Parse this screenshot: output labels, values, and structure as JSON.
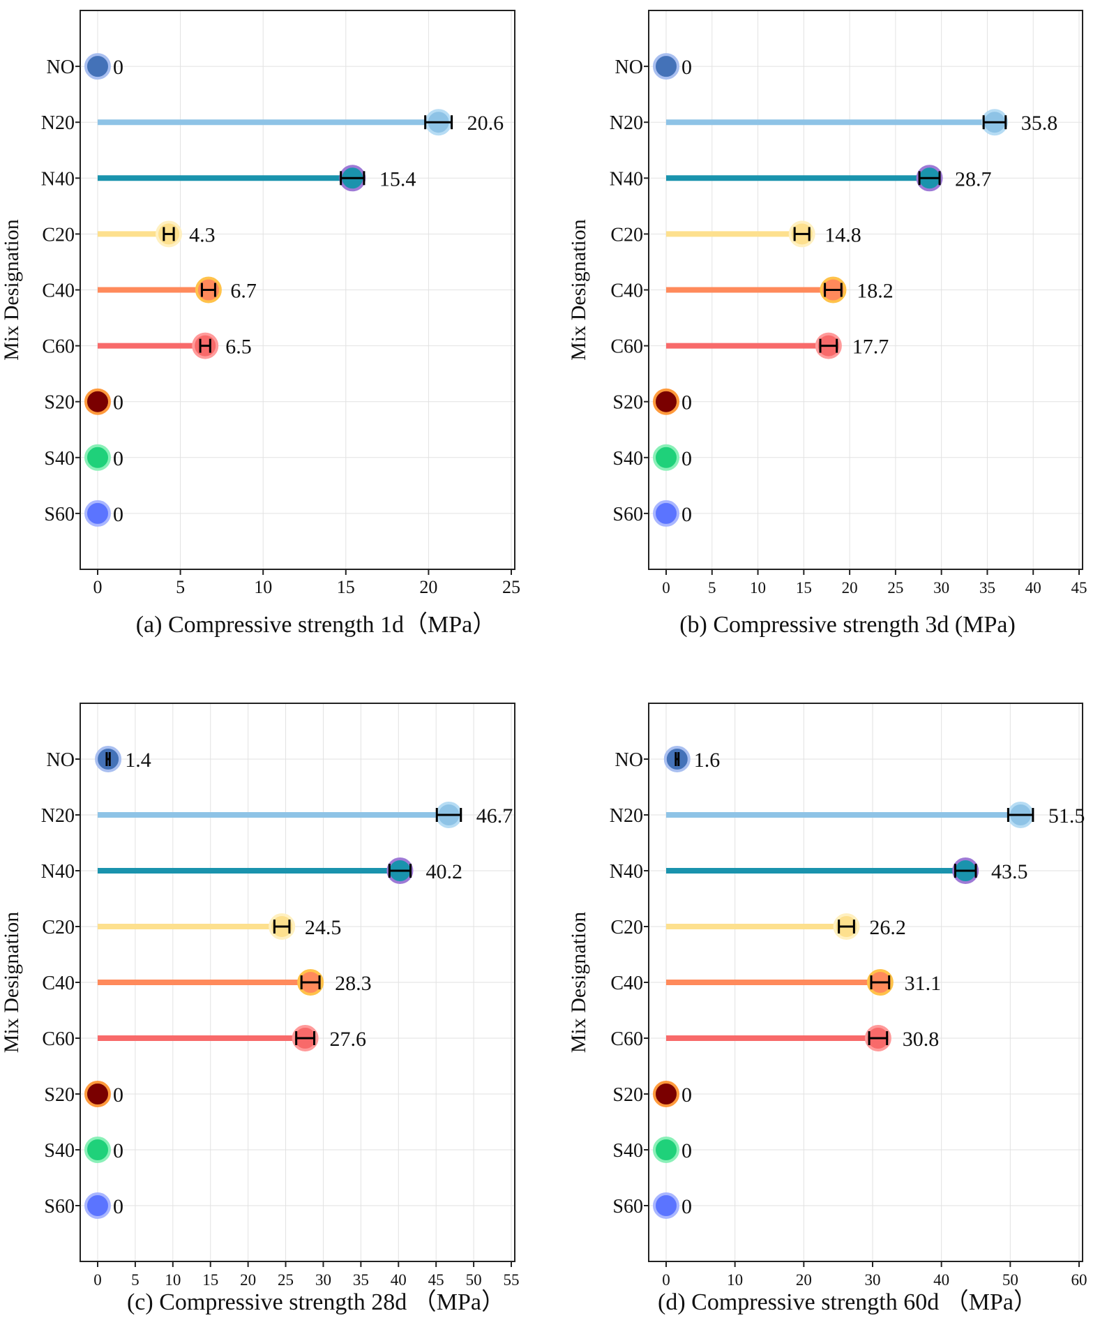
{
  "chart_data": [
    {
      "type": "lollipop",
      "caption": "(a) Compressive strength 1d（MPa）",
      "ylabel": "Mix Designation",
      "xlim": [
        0,
        25
      ],
      "xticks": [
        0,
        5,
        10,
        15,
        20,
        25
      ],
      "grid": true,
      "categories": [
        "NO",
        "N20",
        "N40",
        "C20",
        "C40",
        "C60",
        "S20",
        "S40",
        "S60"
      ],
      "values": [
        0,
        20.6,
        15.4,
        4.3,
        6.7,
        6.5,
        0,
        0,
        0
      ],
      "value_labels": [
        "0",
        "20.6",
        "15.4",
        "4.3",
        "6.7",
        "6.5",
        "0",
        "0",
        "0"
      ],
      "errors": [
        0,
        0.8,
        0.7,
        0.3,
        0.4,
        0.3,
        0,
        0,
        0
      ]
    },
    {
      "type": "lollipop",
      "caption": "(b) Compressive strength 3d (MPa)",
      "ylabel": "Mix Designation",
      "xlim": [
        0,
        45
      ],
      "xticks": [
        0,
        5,
        10,
        15,
        20,
        25,
        30,
        35,
        40,
        45
      ],
      "grid": true,
      "categories": [
        "NO",
        "N20",
        "N40",
        "C20",
        "C40",
        "C60",
        "S20",
        "S40",
        "S60"
      ],
      "values": [
        0,
        35.8,
        28.7,
        14.8,
        18.2,
        17.7,
        0,
        0,
        0
      ],
      "value_labels": [
        "0",
        "35.8",
        "28.7",
        "14.8",
        "18.2",
        "17.7",
        "0",
        "0",
        "0"
      ],
      "errors": [
        0,
        1.2,
        1.1,
        0.8,
        0.9,
        0.9,
        0,
        0,
        0
      ]
    },
    {
      "type": "lollipop",
      "caption": "(c) Compressive strength 28d （MPa）",
      "ylabel": "Mix Designation",
      "xlim": [
        0,
        55
      ],
      "xticks": [
        0,
        5,
        10,
        15,
        20,
        25,
        30,
        35,
        40,
        45,
        50,
        55
      ],
      "grid": true,
      "categories": [
        "NO",
        "N20",
        "N40",
        "C20",
        "C40",
        "C60",
        "S20",
        "S40",
        "S60"
      ],
      "values": [
        1.4,
        46.7,
        40.2,
        24.5,
        28.3,
        27.6,
        0,
        0,
        0
      ],
      "value_labels": [
        "1.4",
        "46.7",
        "40.2",
        "24.5",
        "28.3",
        "27.6",
        "0",
        "0",
        "0"
      ],
      "errors": [
        0.2,
        1.6,
        1.4,
        1.0,
        1.2,
        1.2,
        0,
        0,
        0
      ]
    },
    {
      "type": "lollipop",
      "caption": "(d) Compressive strength 60d （MPa）",
      "ylabel": "Mix Designation",
      "xlim": [
        0,
        60
      ],
      "xticks": [
        0,
        10,
        20,
        30,
        40,
        50,
        60
      ],
      "grid": true,
      "categories": [
        "NO",
        "N20",
        "N40",
        "C20",
        "C40",
        "C60",
        "S20",
        "S40",
        "S60"
      ],
      "values": [
        1.6,
        51.5,
        43.5,
        26.2,
        31.1,
        30.8,
        0,
        0,
        0
      ],
      "value_labels": [
        "1.6",
        "51.5",
        "43.5",
        "26.2",
        "31.1",
        "30.8",
        "0",
        "0",
        "0"
      ],
      "errors": [
        0.2,
        1.8,
        1.5,
        1.1,
        1.3,
        1.3,
        0,
        0,
        0
      ]
    }
  ],
  "colors": {
    "NO": {
      "line": "#4472b8",
      "dot": "#4472b8",
      "ring": "#a9bff0"
    },
    "N20": {
      "line": "#8ec3e6",
      "dot": "#8ec3e6",
      "ring": "#b6dcf4"
    },
    "N40": {
      "line": "#1a93ad",
      "dot": "#1a93ad",
      "ring": "#9e7ad6"
    },
    "C20": {
      "line": "#fde08e",
      "dot": "#fde08e",
      "ring": "#fff0c0"
    },
    "C40": {
      "line": "#ff8a5b",
      "dot": "#ff8a5b",
      "ring": "#ffc24a"
    },
    "C60": {
      "line": "#f86a6a",
      "dot": "#f86a6a",
      "ring": "#ff9a9a"
    },
    "S20": {
      "line": "#7a0000",
      "dot": "#7a0000",
      "ring": "#ff9a3c"
    },
    "S40": {
      "line": "#1fd17a",
      "dot": "#1fd17a",
      "ring": "#8af0b8"
    },
    "S60": {
      "line": "#5b74ff",
      "dot": "#5b74ff",
      "ring": "#a9b6ff"
    }
  }
}
